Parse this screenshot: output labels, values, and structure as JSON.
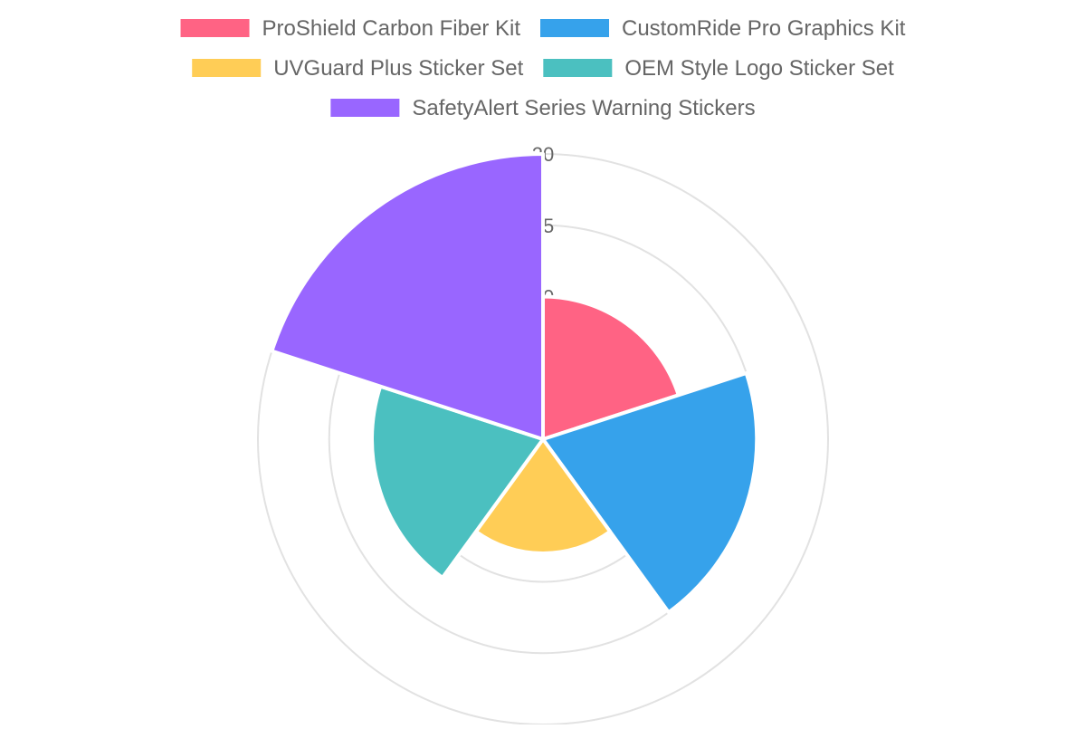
{
  "chart_data": {
    "type": "polarArea",
    "title": "",
    "categories": [
      "ProShield Carbon Fiber Kit",
      "CustomRide Pro Graphics Kit",
      "UVGuard Plus Sticker Set",
      "OEM Style Logo Sticker Set",
      "SafetyAlert Series Warning Stickers"
    ],
    "values": [
      10,
      15,
      8,
      12,
      20
    ],
    "colors": [
      "#ff6384",
      "#36a2eb",
      "#ffcd56",
      "#4bc0c0",
      "#9966ff"
    ],
    "r_ticks": [
      5,
      10,
      15,
      20
    ],
    "r_tick_labels_visible": [
      "10",
      "15",
      "20"
    ],
    "rlim": [
      0,
      20
    ],
    "grid": true,
    "legend_position": "top"
  }
}
